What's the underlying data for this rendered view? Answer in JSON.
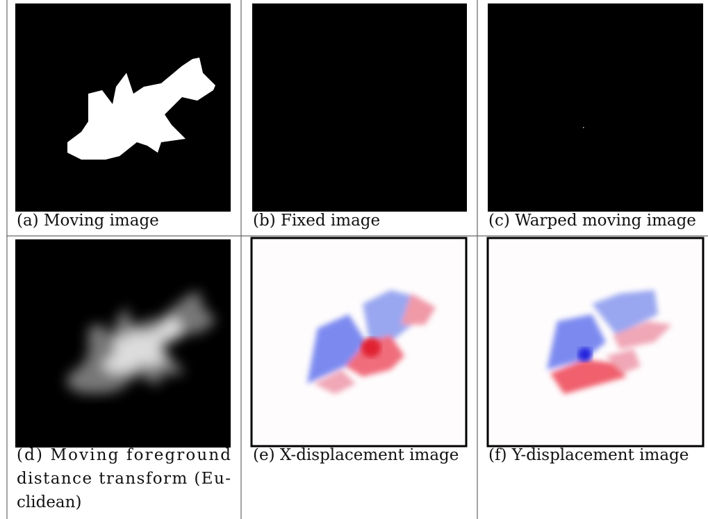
{
  "panels": [
    {
      "caption_lines": [
        "(a) Moving image"
      ]
    },
    {
      "caption_lines": [
        "(b) Fixed image"
      ]
    },
    {
      "caption_lines": [
        "(c) Warped moving image"
      ]
    },
    {
      "caption_lines": [
        "(d) Moving foreground",
        "distance transform (Eu-",
        "clidean)"
      ]
    },
    {
      "caption_lines": [
        "(e) X-displacement image"
      ]
    },
    {
      "caption_lines": [
        "(f) Y-displacement image"
      ]
    }
  ]
}
